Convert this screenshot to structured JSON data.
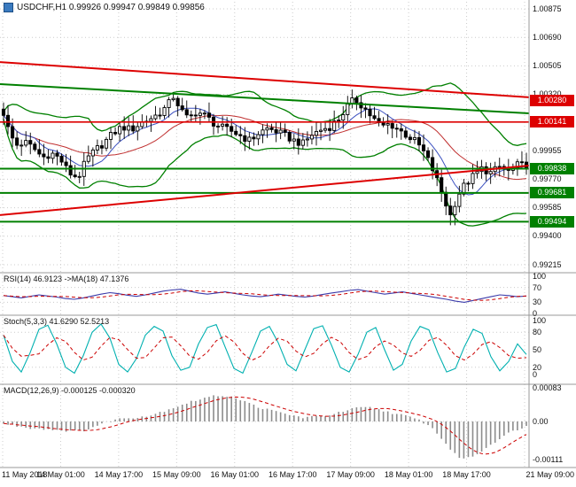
{
  "window": {
    "title": "USDCHF,H1 0.99926 0.99947 0.99849 0.99856"
  },
  "colors": {
    "up_candle": "#ffffff",
    "down_candle": "#000000",
    "candle_border": "#000000",
    "bollinger": "#008000",
    "ma_fast": "#3b50c0",
    "ma_slow": "#c03030",
    "red_level": "#dd0000",
    "green_level": "#008000",
    "rsi_line": "#3b3baa",
    "stoch_line": "#00b0b0",
    "signal_line": "#cc0000",
    "macd_hist": "#8c8c8c",
    "grid": "#cccccc",
    "separator": "#999999"
  },
  "chart_data": [
    {
      "type": "candlestick",
      "symbol": "USDCHF",
      "timeframe": "H1",
      "last_bar_ohlc": [
        "0.99926",
        "0.99947",
        "0.99849",
        "0.99856"
      ],
      "ylim": [
        0.99215,
        1.00875
      ],
      "y_ticks": [
        1.00875,
        1.0069,
        1.00505,
        1.0032,
        0.99955,
        0.9977,
        0.99585,
        0.994,
        0.99215
      ],
      "x_tick_labels": [
        "11 May 2018",
        "14 May 01:00",
        "14 May 17:00",
        "15 May 09:00",
        "16 May 01:00",
        "16 May 17:00",
        "17 May 09:00",
        "18 May 01:00",
        "18 May 17:00",
        "21 May 09:00"
      ],
      "price_path": [
        [
          3,
          1.0022
        ],
        [
          10,
          1.0008
        ],
        [
          18,
          0.9999
        ],
        [
          28,
          1.0001
        ],
        [
          38,
          0.9997
        ],
        [
          48,
          0.9991
        ],
        [
          58,
          0.9994
        ],
        [
          68,
          0.999
        ],
        [
          78,
          0.9981
        ],
        [
          88,
          0.9978
        ],
        [
          98,
          0.999
        ],
        [
          108,
          0.9996
        ],
        [
          118,
          1.0001
        ],
        [
          128,
          1.0007
        ],
        [
          138,
          1.0011
        ],
        [
          148,
          1.0009
        ],
        [
          158,
          1.0013
        ],
        [
          168,
          1.0016
        ],
        [
          178,
          1.0019
        ],
        [
          188,
          1.0024
        ],
        [
          196,
          1.0031
        ],
        [
          204,
          1.0022
        ],
        [
          212,
          1.0016
        ],
        [
          222,
          1.0021
        ],
        [
          232,
          1.0018
        ],
        [
          242,
          1.0013
        ],
        [
          252,
          1.001
        ],
        [
          262,
          1.0008
        ],
        [
          272,
          1.0005
        ],
        [
          282,
          1.0002
        ],
        [
          292,
          1.0007
        ],
        [
          302,
          1.001
        ],
        [
          312,
          1.0008
        ],
        [
          322,
          1.0005
        ],
        [
          332,
          1.0002
        ],
        [
          342,
          1.0
        ],
        [
          352,
          1.0006
        ],
        [
          362,
          1.0009
        ],
        [
          372,
          1.0011
        ],
        [
          382,
          1.0016
        ],
        [
          392,
          1.0024
        ],
        [
          400,
          1.0029
        ],
        [
          410,
          1.0024
        ],
        [
          420,
          1.0017
        ],
        [
          430,
          1.0011
        ],
        [
          440,
          1.0013
        ],
        [
          450,
          1.0009
        ],
        [
          460,
          1.0005
        ],
        [
          470,
          1.0001
        ],
        [
          480,
          0.9993
        ],
        [
          490,
          0.9981
        ],
        [
          500,
          0.9966
        ],
        [
          508,
          0.9953
        ],
        [
          516,
          0.9966
        ],
        [
          524,
          0.9973
        ],
        [
          534,
          0.9979
        ],
        [
          544,
          0.9984
        ],
        [
          554,
          0.9981
        ],
        [
          564,
          0.9985
        ],
        [
          574,
          0.9982
        ],
        [
          584,
          0.9986
        ],
        [
          592,
          0.9986
        ]
      ],
      "levels": [
        {
          "price": 1.0028,
          "color": "#dd0000",
          "line": false,
          "badge": true
        },
        {
          "price": 1.00141,
          "color": "#dd0000",
          "line": true,
          "badge": true
        },
        {
          "price": 0.99838,
          "color": "#008000",
          "line": true,
          "badge": true
        },
        {
          "price": 0.99681,
          "color": "#008000",
          "line": true,
          "badge": true
        },
        {
          "price": 0.99494,
          "color": "#008000",
          "line": true,
          "badge": true
        }
      ],
      "trendlines": [
        {
          "p1": 1.0053,
          "p2": 1.00301,
          "color": "#dd0000"
        },
        {
          "p1": 1.00387,
          "p2": 1.00197,
          "color": "#008000"
        },
        {
          "p1": 0.99537,
          "p2": 0.99858,
          "color": "#dd0000"
        }
      ],
      "overlays": [
        "Bollinger Bands (green)",
        "fast MA (blue)",
        "slow MA (red)"
      ]
    },
    {
      "type": "line",
      "name": "RSI",
      "label": "RSI(14) 46.9123 ->MA(18) 47.1376",
      "value": 46.9123,
      "ma_value": 47.1376,
      "ylim": [
        0,
        100
      ],
      "y_ticks": [
        100,
        70,
        30,
        0
      ],
      "guide_levels": [
        70,
        30
      ],
      "values": [
        48,
        45,
        42,
        46,
        50,
        47,
        44,
        40,
        38,
        42,
        47,
        52,
        56,
        53,
        49,
        46,
        50,
        55,
        60,
        63,
        65,
        60,
        55,
        52,
        55,
        58,
        54,
        50,
        47,
        45,
        48,
        52,
        49,
        46,
        44,
        47,
        51,
        55,
        58,
        62,
        64,
        60,
        56,
        52,
        55,
        58,
        54,
        50,
        46,
        42,
        38,
        33,
        30,
        35,
        40,
        45,
        50,
        48,
        45,
        47
      ]
    },
    {
      "type": "line",
      "name": "Stochastic",
      "label": "Stoch(5,3,3) 41.6290 52.5213",
      "k_value": 41.629,
      "d_value": 52.5213,
      "ylim": [
        0,
        100
      ],
      "y_ticks": [
        100,
        80,
        50,
        20,
        0
      ],
      "guide_levels": [
        80,
        20
      ],
      "values": [
        75,
        30,
        12,
        45,
        85,
        92,
        60,
        20,
        10,
        40,
        80,
        94,
        70,
        25,
        12,
        35,
        75,
        90,
        82,
        40,
        15,
        20,
        60,
        88,
        93,
        55,
        18,
        10,
        45,
        82,
        90,
        62,
        25,
        14,
        50,
        86,
        91,
        58,
        20,
        12,
        42,
        80,
        88,
        50,
        15,
        25,
        65,
        90,
        84,
        45,
        12,
        18,
        55,
        85,
        78,
        38,
        14,
        30,
        60,
        42
      ]
    },
    {
      "type": "bar",
      "name": "MACD",
      "label": "MACD(12,26,9) -0.000125 -0.000320",
      "value": -0.000125,
      "signal_value": -0.00032,
      "ylim": [
        -0.00111,
        0.00083
      ],
      "y_ticks": [
        0.00083,
        0,
        -0.00111
      ],
      "y_tick_labels": [
        "0.00083",
        "0.00",
        "-0.00111"
      ],
      "values_path": [
        [
          3,
          -5e-05
        ],
        [
          30,
          -0.00015
        ],
        [
          60,
          -0.0002
        ],
        [
          90,
          -0.00025
        ],
        [
          110,
          -0.0001
        ],
        [
          130,
          5e-05
        ],
        [
          150,
          0.0001
        ],
        [
          170,
          0.00015
        ],
        [
          190,
          0.0003
        ],
        [
          210,
          0.00045
        ],
        [
          230,
          0.00058
        ],
        [
          250,
          0.00065
        ],
        [
          265,
          0.0006
        ],
        [
          280,
          0.00045
        ],
        [
          300,
          0.0003
        ],
        [
          320,
          0.0002
        ],
        [
          340,
          0.0001
        ],
        [
          360,
          0.00012
        ],
        [
          380,
          0.0002
        ],
        [
          400,
          0.00032
        ],
        [
          415,
          0.00035
        ],
        [
          430,
          0.00028
        ],
        [
          445,
          0.0002
        ],
        [
          460,
          0.00012
        ],
        [
          475,
          2e-05
        ],
        [
          490,
          -0.0002
        ],
        [
          505,
          -0.0006
        ],
        [
          515,
          -0.00085
        ],
        [
          525,
          -0.00092
        ],
        [
          535,
          -0.00085
        ],
        [
          545,
          -0.0007
        ],
        [
          555,
          -0.00055
        ],
        [
          565,
          -0.0004
        ],
        [
          575,
          -0.00028
        ],
        [
          585,
          -0.00018
        ],
        [
          592,
          -0.000125
        ]
      ]
    }
  ]
}
